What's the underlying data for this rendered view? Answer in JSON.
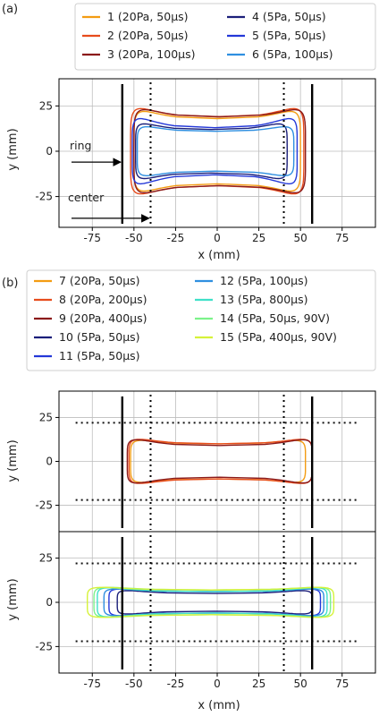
{
  "panels": [
    {
      "id": "a",
      "label": "(a)",
      "legend": [
        {
          "name": "1 (20Pa, 50μs)",
          "color": "#f39c12"
        },
        {
          "name": "2 (20Pa, 50μs)",
          "color": "#e74c1c"
        },
        {
          "name": "3 (20Pa, 100μs)",
          "color": "#8b1a1a"
        },
        {
          "name": "4 (5Pa, 50μs)",
          "color": "#1b1f7a"
        },
        {
          "name": "5 (5Pa, 50μs)",
          "color": "#2438d8"
        },
        {
          "name": "6 (5Pa, 100μs)",
          "color": "#2f8fe0"
        }
      ],
      "annotations": [
        "ring",
        "center"
      ]
    },
    {
      "id": "b",
      "label": "(b)",
      "legend": [
        {
          "name": "7 (20Pa, 50μs)",
          "color": "#f39c12"
        },
        {
          "name": "8 (20Pa, 200μs)",
          "color": "#e74c1c"
        },
        {
          "name": "9 (20Pa, 400μs)",
          "color": "#8b1a1a"
        },
        {
          "name": "10 (5Pa, 50μs)",
          "color": "#1b1f7a"
        },
        {
          "name": "11 (5Pa, 50μs)",
          "color": "#2438d8"
        },
        {
          "name": "12 (5Pa, 100μs)",
          "color": "#2f8fe0"
        },
        {
          "name": "13 (5Pa, 800μs)",
          "color": "#3fe0c8"
        },
        {
          "name": "14 (5Pa, 50μs, 90V)",
          "color": "#7cf28a"
        },
        {
          "name": "15 (5Pa, 400μs, 90V)",
          "color": "#d6f23a"
        }
      ]
    }
  ],
  "chart_data": [
    {
      "type": "line",
      "panel": "a",
      "xlabel": "x (mm)",
      "ylabel": "y (mm)",
      "xlim": [
        -95,
        95
      ],
      "ylim": [
        -42,
        40
      ],
      "xticks": [
        -75,
        -50,
        -25,
        0,
        25,
        50,
        75
      ],
      "yticks": [
        -25,
        0,
        25
      ],
      "grid": true,
      "ring_x": [
        -57,
        57
      ],
      "center_x": [
        -40,
        40
      ],
      "series": [
        {
          "name": "1 (20Pa, 50μs)",
          "color": "#f39c12",
          "outline": {
            "L": -50,
            "R": 50,
            "neck": 18,
            "end": 26
          }
        },
        {
          "name": "2 (20Pa, 50μs)",
          "color": "#e74c1c",
          "outline": {
            "L": -52,
            "R": 52,
            "neck": 19,
            "end": 28
          }
        },
        {
          "name": "3 (20Pa, 100μs)",
          "color": "#8b1a1a",
          "outline": {
            "L": -50,
            "R": 53,
            "neck": 19,
            "end": 27
          }
        },
        {
          "name": "4 (5Pa, 50μs)",
          "color": "#1b1f7a",
          "outline": {
            "L": -49,
            "R": 42,
            "neck": 12,
            "end": 18
          }
        },
        {
          "name": "5 (5Pa, 50μs)",
          "color": "#2438d8",
          "outline": {
            "L": -51,
            "R": 48,
            "neck": 13,
            "end": 22
          }
        },
        {
          "name": "6 (5Pa, 100μs)",
          "color": "#2f8fe0",
          "outline": {
            "L": -48,
            "R": 46,
            "neck": 11,
            "end": 16
          }
        }
      ]
    },
    {
      "type": "line",
      "panel": "b-top",
      "xlabel": "",
      "ylabel": "y (mm)",
      "xlim": [
        -95,
        95
      ],
      "ylim": [
        -40,
        40
      ],
      "yticks": [
        -25,
        0,
        25
      ],
      "grid": true,
      "ring_x": [
        -57,
        57
      ],
      "center_x": [
        -40,
        40
      ],
      "hline_y": [
        22,
        -22
      ],
      "series": [
        {
          "name": "7 (20Pa, 50μs)",
          "color": "#f39c12",
          "outline": {
            "L": -52,
            "R": 53,
            "neck": 10,
            "end": 14
          }
        },
        {
          "name": "8 (20Pa, 200μs)",
          "color": "#e74c1c",
          "outline": {
            "L": -53,
            "R": 57,
            "neck": 10,
            "end": 15
          }
        },
        {
          "name": "9 (20Pa, 400μs)",
          "color": "#8b1a1a",
          "outline": {
            "L": -54,
            "R": 57,
            "neck": 9,
            "end": 15
          }
        }
      ]
    },
    {
      "type": "line",
      "panel": "b-bottom",
      "xlabel": "x (mm)",
      "ylabel": "y (mm)",
      "xlim": [
        -95,
        95
      ],
      "ylim": [
        -40,
        40
      ],
      "xticks": [
        -75,
        -50,
        -25,
        0,
        25,
        50,
        75
      ],
      "yticks": [
        -25,
        0,
        25
      ],
      "grid": true,
      "ring_x": [
        -57,
        57
      ],
      "center_x": [
        -40,
        40
      ],
      "hline_y": [
        22,
        -22
      ],
      "series": [
        {
          "name": "10 (5Pa, 50μs)",
          "color": "#1b1f7a",
          "outline": {
            "L": -60,
            "R": 57,
            "neck": 5,
            "end": 8
          }
        },
        {
          "name": "11 (5Pa, 50μs)",
          "color": "#2438d8",
          "outline": {
            "L": -65,
            "R": 62,
            "neck": 6,
            "end": 9
          }
        },
        {
          "name": "12 (5Pa, 100μs)",
          "color": "#2f8fe0",
          "outline": {
            "L": -68,
            "R": 64,
            "neck": 6,
            "end": 9
          }
        },
        {
          "name": "13 (5Pa, 800μs)",
          "color": "#3fe0c8",
          "outline": {
            "L": -72,
            "R": 66,
            "neck": 6,
            "end": 10
          }
        },
        {
          "name": "14 (5Pa, 50μs, 90V)",
          "color": "#7cf28a",
          "outline": {
            "L": -74,
            "R": 68,
            "neck": 7,
            "end": 10
          }
        },
        {
          "name": "15 (5Pa, 400μs, 90V)",
          "color": "#d6f23a",
          "outline": {
            "L": -78,
            "R": 70,
            "neck": 7,
            "end": 10
          }
        }
      ]
    }
  ]
}
